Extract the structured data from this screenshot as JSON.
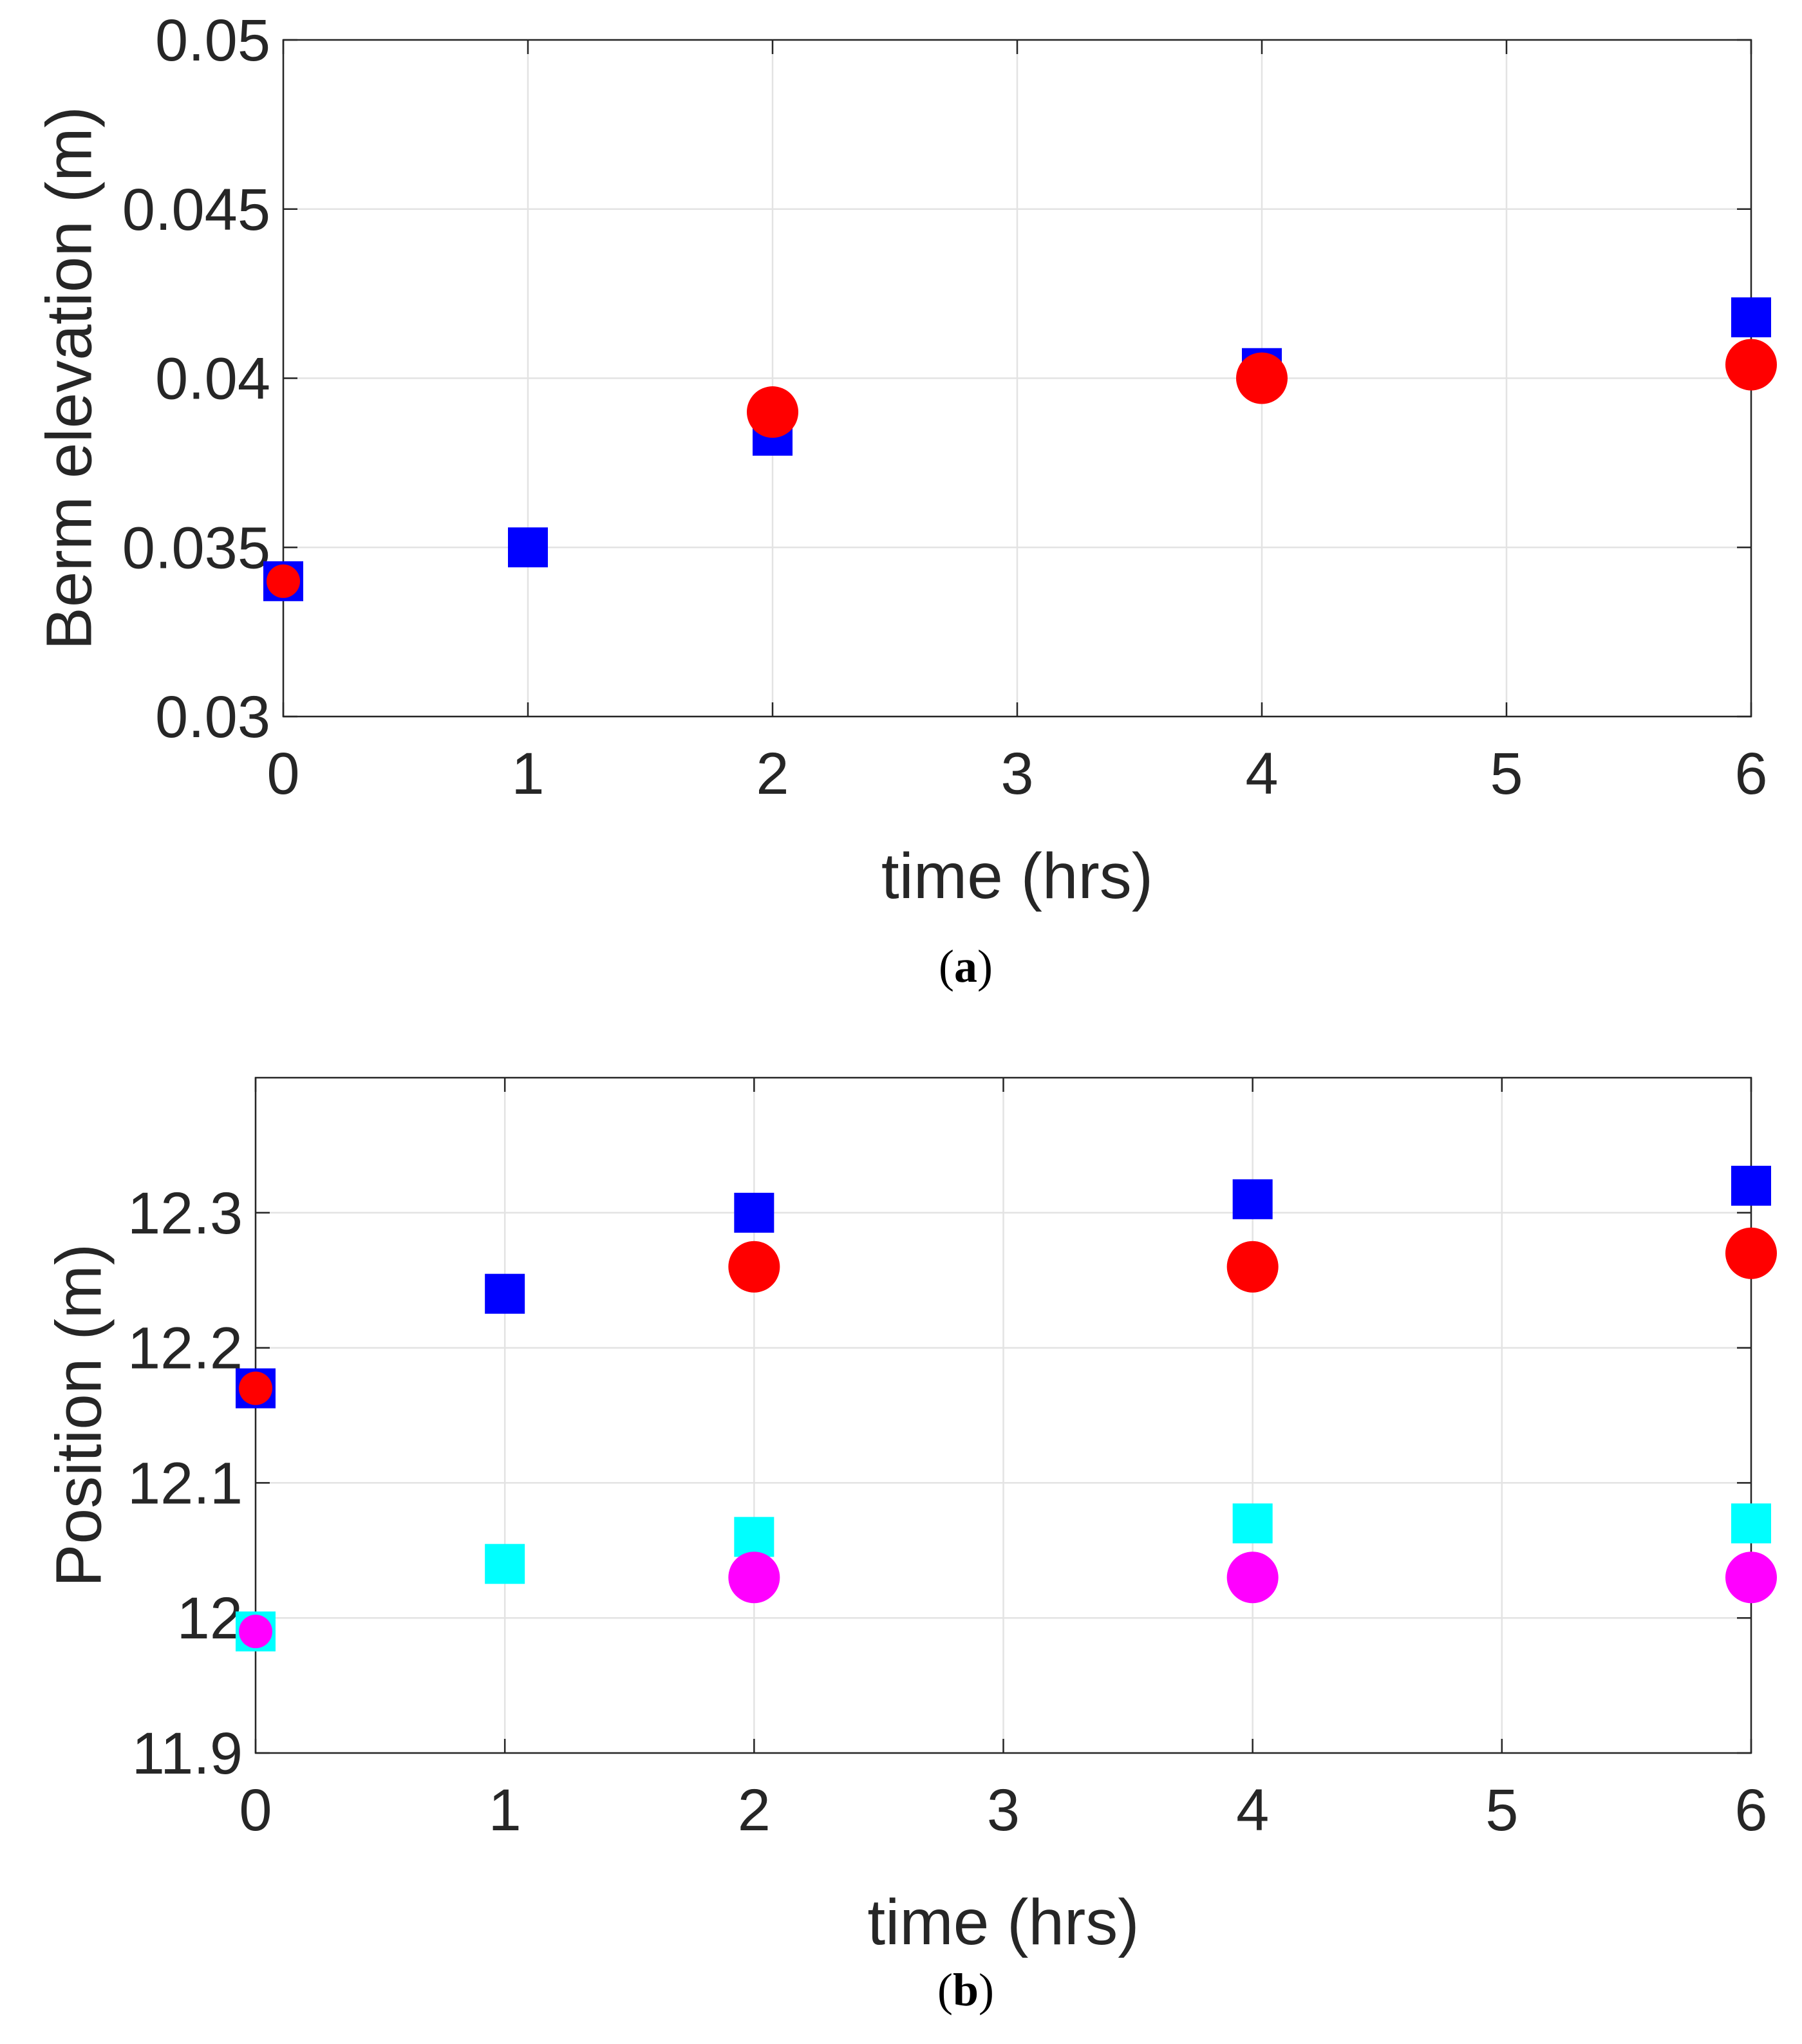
{
  "chart_data": [
    {
      "type": "scatter",
      "panel_caption": "a",
      "title": "",
      "xlabel": "time (hrs)",
      "ylabel": "Berm elevation (m)",
      "xlim": [
        0,
        6
      ],
      "ylim": [
        0.03,
        0.05
      ],
      "xticks": [
        0,
        1,
        2,
        3,
        4,
        5,
        6
      ],
      "xtick_labels": [
        "0",
        "1",
        "2",
        "3",
        "4",
        "5",
        "6"
      ],
      "yticks": [
        0.03,
        0.035,
        0.04,
        0.045,
        0.05
      ],
      "ytick_labels": [
        "0.03",
        "0.035",
        "0.04",
        "0.045",
        "0.05"
      ],
      "grid": true,
      "legend": null,
      "series": [
        {
          "name": "square-blue",
          "marker": "square",
          "color": "#0000ff",
          "x": [
            0,
            1,
            2,
            4,
            6
          ],
          "y": [
            0.034,
            0.035,
            0.0383,
            0.0403,
            0.0418
          ]
        },
        {
          "name": "circle-red",
          "marker": "circle",
          "color": "#ff0000",
          "x": [
            0,
            2,
            4,
            6
          ],
          "y": [
            0.034,
            0.039,
            0.04,
            0.0404
          ],
          "sizes": [
            "small",
            "large",
            "large",
            "large"
          ]
        }
      ]
    },
    {
      "type": "scatter",
      "panel_caption": "b",
      "title": "",
      "xlabel": "time (hrs)",
      "ylabel": "Position (m)",
      "xlim": [
        0,
        6
      ],
      "ylim": [
        11.9,
        12.4
      ],
      "xticks": [
        0,
        1,
        2,
        3,
        4,
        5,
        6
      ],
      "xtick_labels": [
        "0",
        "1",
        "2",
        "3",
        "4",
        "5",
        "6"
      ],
      "yticks": [
        11.9,
        12.0,
        12.1,
        12.2,
        12.3
      ],
      "ytick_labels": [
        "11.9",
        "12",
        "12.1",
        "12.2",
        "12.3"
      ],
      "grid": true,
      "legend": null,
      "series": [
        {
          "name": "square-blue",
          "marker": "square",
          "color": "#0000ff",
          "x": [
            0,
            1,
            2,
            4,
            6
          ],
          "y": [
            12.17,
            12.24,
            12.3,
            12.31,
            12.32
          ]
        },
        {
          "name": "circle-red",
          "marker": "circle",
          "color": "#ff0000",
          "x": [
            0,
            2,
            4,
            6
          ],
          "y": [
            12.17,
            12.26,
            12.26,
            12.27
          ],
          "sizes": [
            "small",
            "large",
            "large",
            "large"
          ]
        },
        {
          "name": "square-cyan",
          "marker": "square",
          "color": "#00ffff",
          "x": [
            0,
            1,
            2,
            4,
            6
          ],
          "y": [
            11.99,
            12.04,
            12.06,
            12.07,
            12.07
          ]
        },
        {
          "name": "circle-magenta",
          "marker": "circle",
          "color": "#ff00ff",
          "x": [
            0,
            2,
            4,
            6
          ],
          "y": [
            11.99,
            12.03,
            12.03,
            12.03
          ],
          "sizes": [
            "small",
            "large",
            "large",
            "large"
          ]
        }
      ]
    }
  ]
}
